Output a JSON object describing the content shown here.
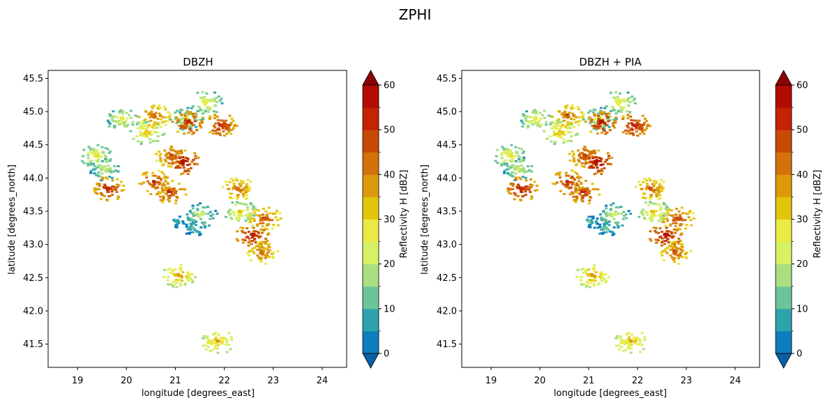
{
  "suptitle": "ZPHI",
  "colors": {
    "levels": [
      "#0e7dbd",
      "#2ea3ad",
      "#6cc49a",
      "#a9df80",
      "#d6f163",
      "#eaea45",
      "#e3c50c",
      "#dc9a0c",
      "#d4710a",
      "#c94906",
      "#c22405",
      "#b30b03"
    ],
    "under": "#0b5fa5",
    "over": "#8c0402"
  },
  "chart_data": [
    {
      "type": "heatmap",
      "title": "DBZH",
      "xlabel": "longitude [degrees_east]",
      "ylabel": "latitude [degrees_north]",
      "xlim": [
        18.4,
        24.5
      ],
      "ylim": [
        41.15,
        45.62
      ],
      "xticks": [
        "19",
        "20",
        "21",
        "22",
        "23",
        "24"
      ],
      "yticks": [
        "41.5",
        "42.0",
        "42.5",
        "43.0",
        "43.5",
        "44.0",
        "44.5",
        "45.0",
        "45.5"
      ],
      "colorbar": {
        "label": "Reflectivity H [dBZ]",
        "min": 0,
        "max": 60,
        "step": 5,
        "ticks": [
          "0",
          "10",
          "20",
          "30",
          "40",
          "50",
          "60"
        ],
        "extend": "both"
      },
      "cells": [
        {
          "lon": 19.9,
          "lat": 44.9,
          "dbz": 27
        },
        {
          "lon": 20.4,
          "lat": 44.7,
          "dbz": 33
        },
        {
          "lon": 20.9,
          "lat": 44.35,
          "dbz": 47
        },
        {
          "lon": 21.15,
          "lat": 44.25,
          "dbz": 56
        },
        {
          "lon": 20.55,
          "lat": 44.95,
          "dbz": 44
        },
        {
          "lon": 21.2,
          "lat": 44.9,
          "dbz": 25
        },
        {
          "lon": 21.25,
          "lat": 44.85,
          "dbz": 53
        },
        {
          "lon": 19.55,
          "lat": 44.15,
          "dbz": 22
        },
        {
          "lon": 19.6,
          "lat": 43.85,
          "dbz": 52
        },
        {
          "lon": 19.35,
          "lat": 44.35,
          "dbz": 28
        },
        {
          "lon": 20.85,
          "lat": 43.8,
          "dbz": 50
        },
        {
          "lon": 21.35,
          "lat": 43.25,
          "dbz": 12
        },
        {
          "lon": 21.5,
          "lat": 43.45,
          "dbz": 22
        },
        {
          "lon": 21.0,
          "lat": 43.35,
          "dbz": 9
        },
        {
          "lon": 22.8,
          "lat": 43.4,
          "dbz": 47
        },
        {
          "lon": 22.3,
          "lat": 43.5,
          "dbz": 30
        },
        {
          "lon": 22.55,
          "lat": 43.15,
          "dbz": 54
        },
        {
          "lon": 22.75,
          "lat": 42.9,
          "dbz": 43
        },
        {
          "lon": 22.25,
          "lat": 43.85,
          "dbz": 44
        },
        {
          "lon": 21.9,
          "lat": 44.8,
          "dbz": 52
        },
        {
          "lon": 21.05,
          "lat": 42.55,
          "dbz": 37
        },
        {
          "lon": 21.85,
          "lat": 41.55,
          "dbz": 35
        },
        {
          "lon": 20.55,
          "lat": 43.95,
          "dbz": 50
        },
        {
          "lon": 21.6,
          "lat": 45.15,
          "dbz": 28
        }
      ]
    },
    {
      "type": "heatmap",
      "title": "DBZH + PIA",
      "xlabel": "longitude [degrees_east]",
      "ylabel": "latitude [degrees_north]",
      "xlim": [
        18.4,
        24.5
      ],
      "ylim": [
        41.15,
        45.62
      ],
      "xticks": [
        "19",
        "20",
        "21",
        "22",
        "23",
        "24"
      ],
      "yticks": [
        "41.5",
        "42.0",
        "42.5",
        "43.0",
        "43.5",
        "44.0",
        "44.5",
        "45.0",
        "45.5"
      ],
      "colorbar": {
        "label": "Reflectivity H [dBZ]",
        "min": 0,
        "max": 60,
        "step": 5,
        "ticks": [
          "0",
          "10",
          "20",
          "30",
          "40",
          "50",
          "60"
        ],
        "extend": "both"
      },
      "cells": [
        {
          "lon": 19.9,
          "lat": 44.9,
          "dbz": 28
        },
        {
          "lon": 20.4,
          "lat": 44.7,
          "dbz": 34
        },
        {
          "lon": 20.9,
          "lat": 44.35,
          "dbz": 49
        },
        {
          "lon": 21.15,
          "lat": 44.25,
          "dbz": 58
        },
        {
          "lon": 20.55,
          "lat": 44.95,
          "dbz": 45
        },
        {
          "lon": 21.2,
          "lat": 44.9,
          "dbz": 26
        },
        {
          "lon": 21.25,
          "lat": 44.85,
          "dbz": 55
        },
        {
          "lon": 19.55,
          "lat": 44.15,
          "dbz": 23
        },
        {
          "lon": 19.6,
          "lat": 43.85,
          "dbz": 54
        },
        {
          "lon": 19.35,
          "lat": 44.35,
          "dbz": 29
        },
        {
          "lon": 20.85,
          "lat": 43.8,
          "dbz": 52
        },
        {
          "lon": 21.35,
          "lat": 43.25,
          "dbz": 13
        },
        {
          "lon": 21.5,
          "lat": 43.45,
          "dbz": 23
        },
        {
          "lon": 21.0,
          "lat": 43.35,
          "dbz": 10
        },
        {
          "lon": 22.8,
          "lat": 43.4,
          "dbz": 49
        },
        {
          "lon": 22.3,
          "lat": 43.5,
          "dbz": 31
        },
        {
          "lon": 22.55,
          "lat": 43.15,
          "dbz": 56
        },
        {
          "lon": 22.75,
          "lat": 42.9,
          "dbz": 45
        },
        {
          "lon": 22.25,
          "lat": 43.85,
          "dbz": 45
        },
        {
          "lon": 21.9,
          "lat": 44.8,
          "dbz": 54
        },
        {
          "lon": 21.05,
          "lat": 42.55,
          "dbz": 38
        },
        {
          "lon": 21.85,
          "lat": 41.55,
          "dbz": 36
        },
        {
          "lon": 20.55,
          "lat": 43.95,
          "dbz": 52
        },
        {
          "lon": 21.6,
          "lat": 45.15,
          "dbz": 29
        }
      ]
    }
  ]
}
